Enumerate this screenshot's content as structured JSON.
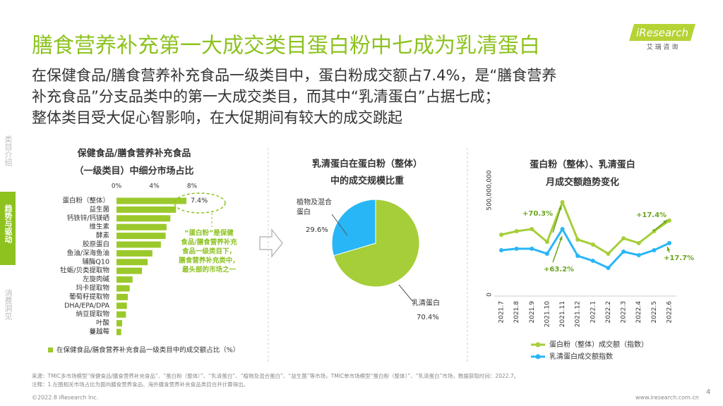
{
  "header": {
    "title": "膳食营养补充第一大成交类目蛋白粉中七成为乳清蛋白",
    "subtitle": [
      "在保健食品/膳食营养补充食品一级类目中，蛋白粉成交额占7.4%，是“膳食营养",
      "补充食品”分支品类中的第一大成交类目，而其中“乳清蛋白”占据七成；",
      "整体类目受大促心智影响，在大促期间有较大的成交跳起"
    ],
    "logo": "iResearch",
    "logo_sub": "艾 瑞 咨 询"
  },
  "sidebar": [
    "类目介绍",
    "趋势与驱动",
    "消费洞见"
  ],
  "chart_data": [
    {
      "type": "hbar",
      "title": [
        "保健食品/膳食营养补充食品",
        "（一级类目）中细分市场占比"
      ],
      "categories": [
        "蛋白粉（整体）",
        "益生菌",
        "钙铁锌/钙镁硒",
        "维生素",
        "酵素",
        "胶原蛋白",
        "鱼油/深海鱼油",
        "辅酶Q10",
        "牡蛎/贝类提取物",
        "左旋肉碱",
        "玛卡提取物",
        "葡萄籽提取物",
        "DHA/EPA/DPA",
        "纳豆提取物",
        "叶酸",
        "蔓越莓"
      ],
      "values": [
        7.4,
        6.3,
        5.7,
        5.3,
        5.2,
        4.7,
        3.8,
        3.3,
        2.7,
        1.7,
        1.4,
        1.2,
        1.1,
        1.0,
        0.6,
        0.5
      ],
      "value_labels": [
        "7.4%",
        null,
        null,
        null,
        null,
        null,
        null,
        null,
        null,
        null,
        null,
        null,
        null,
        null,
        null,
        null
      ],
      "color": "#9bc92b",
      "xlim": [
        0,
        8
      ],
      "xticks": [
        {
          "value": 0,
          "label": "0%"
        },
        {
          "value": 4,
          "label": "4%"
        },
        {
          "value": 8,
          "label": "8%"
        }
      ],
      "annotation": [
        "“蛋白粉”是保健",
        "食品/膳食营养补充",
        "食品一级类目下，",
        "膳食营养补充类中，",
        "最头部的市场之一"
      ],
      "legend": "在保健食品/膳食营养补充食品一级类目中的成交额占比（%）"
    },
    {
      "type": "pie",
      "title": [
        "乳清蛋白在蛋白粉（整体）",
        "中的成交规模比重"
      ],
      "categories": [
        "植物及混合蛋白",
        "乳清蛋白"
      ],
      "values": [
        29.6,
        70.4
      ],
      "value_labels": [
        "29.6%",
        "70.4%"
      ],
      "colors": [
        "#29b6f6",
        "#a6ce39"
      ]
    },
    {
      "type": "line",
      "title": [
        "蛋白粉（整体）、乳清蛋白",
        "月成交额趋势变化"
      ],
      "categories": [
        "2021.7",
        "2021.8",
        "2021.9",
        "2021.10",
        "2021.11",
        "2021.12",
        "2022.1",
        "2022.2",
        "2022.3",
        "2022.4",
        "2022.5",
        "2022.6"
      ],
      "series": [
        {
          "name": "蛋白粉（整体）成交额（指数）",
          "color": "#a6ce39",
          "values": [
            287000000,
            304000000,
            314000000,
            253000000,
            443000000,
            264000000,
            240000000,
            196000000,
            270000000,
            247000000,
            304000000,
            355000000
          ]
        },
        {
          "name": "乳清蛋白成交额指数",
          "color": "#29b6f6",
          "values": [
            213000000,
            220000000,
            220000000,
            196000000,
            314000000,
            186000000,
            162000000,
            128000000,
            206000000,
            189000000,
            213000000,
            247000000
          ]
        }
      ],
      "ylim": [
        0,
        500000000
      ],
      "yticks": [
        0,
        {
          "value": 500000000,
          "label": "500,000,000"
        }
      ],
      "annotations": [
        "+70.3%",
        "+63.2%",
        "+17.4%",
        "+17.7%"
      ]
    }
  ],
  "footer": {
    "source": [
      "来源：TMIC多市场模型“保健食品/膳食营养补充食品”、“蛋白粉（整体）”、“乳清蛋白”、“植物及混合蛋白”、“益生菌”等市场，TMIC单市场模型“蛋白粉（整体）”、“乳清蛋白”市场，数据获取时间：2022.7。",
      "注释：1.左图相关市场占比为面向膳食营养食品、海外膳食营养补充食品类目合并计算得出。"
    ],
    "copyright": "©2022.8 iResearch Inc.",
    "website": "www.iresearch.com.cn",
    "page": "4"
  }
}
